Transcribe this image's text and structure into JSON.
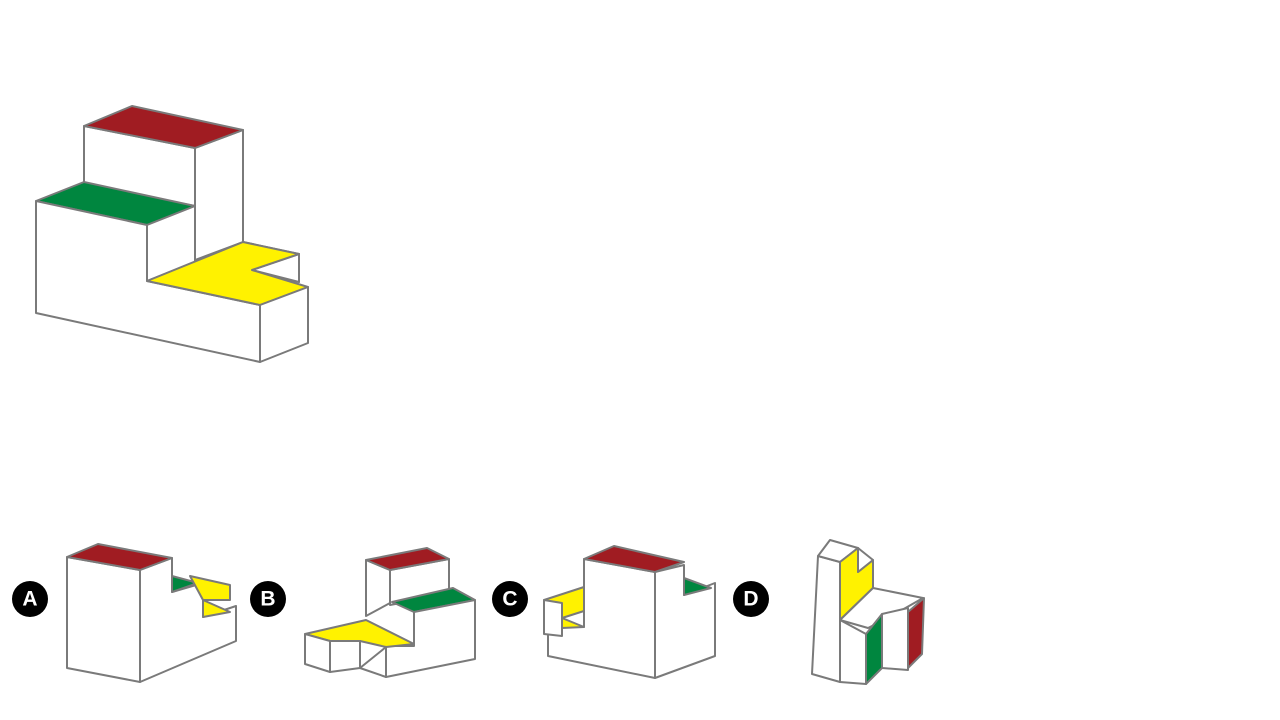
{
  "puzzle": {
    "colors": {
      "red": "#a01c22",
      "green": "#00863f",
      "yellow": "#fff200",
      "white": "#ffffff",
      "edge": "#7a7a7a",
      "badge": "#000000"
    },
    "options": [
      {
        "label": "A"
      },
      {
        "label": "B"
      },
      {
        "label": "C"
      },
      {
        "label": "D"
      }
    ]
  }
}
